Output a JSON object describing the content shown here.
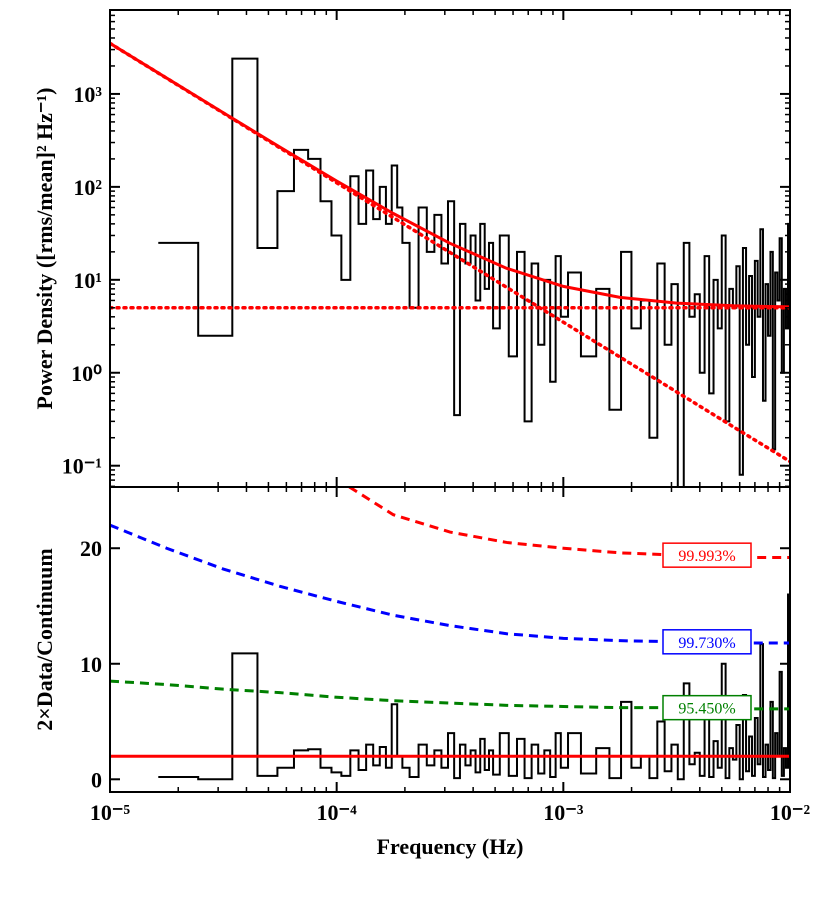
{
  "chart_data": [
    {
      "type": "step-line",
      "ylabel": "Power Density ([rms/mean]² Hz⁻¹)",
      "xscale": "log",
      "yscale": "log",
      "xlim": [
        1e-05,
        0.01
      ],
      "ylim": [
        0.059,
        8000
      ],
      "xticks": [
        {
          "value": 1e-05,
          "label": "10⁻⁵"
        },
        {
          "value": 0.0001,
          "label": "10⁻⁴"
        },
        {
          "value": 0.001,
          "label": "10⁻³"
        },
        {
          "value": 0.01,
          "label": "10⁻²"
        }
      ],
      "yticks": [
        {
          "value": 0.1,
          "label": "10⁻¹"
        },
        {
          "value": 1,
          "label": "10⁰"
        },
        {
          "value": 10,
          "label": "10¹"
        },
        {
          "value": 100,
          "label": "10²"
        },
        {
          "value": 1000,
          "label": "10³"
        }
      ],
      "series": [
        {
          "style": "step",
          "color": "#000000",
          "x": [
            2e-05,
            3e-05,
            4e-05,
            5e-05,
            6e-05,
            7e-05,
            8e-05,
            9e-05,
            0.0001,
            0.00011,
            0.00012,
            0.00013,
            0.00014,
            0.00015,
            0.00016,
            0.00017,
            0.00018,
            0.00019,
            0.0002,
            0.00022,
            0.00024,
            0.00026,
            0.00028,
            0.0003,
            0.00032,
            0.00034,
            0.00036,
            0.00038,
            0.0004,
            0.00042,
            0.00044,
            0.00046,
            0.00048,
            0.0005,
            0.00055,
            0.0006,
            0.00065,
            0.0007,
            0.00075,
            0.0008,
            0.00085,
            0.0009,
            0.00095,
            0.001,
            0.0011,
            0.0013,
            0.0015,
            0.0017,
            0.0019,
            0.0021,
            0.0023,
            0.0025,
            0.0027,
            0.0029,
            0.0031,
            0.0033,
            0.0035,
            0.0037,
            0.0039,
            0.0041,
            0.0043,
            0.0045,
            0.0047,
            0.0049,
            0.0051,
            0.0053,
            0.0055,
            0.0057,
            0.0059,
            0.0061,
            0.0063,
            0.0065,
            0.0067,
            0.0069,
            0.0071,
            0.0073,
            0.0075,
            0.0077,
            0.0079,
            0.0081,
            0.0083,
            0.0085,
            0.0087,
            0.0089,
            0.0091,
            0.0093,
            0.0095,
            0.0097,
            0.0099
          ],
          "values": [
            25,
            2.5,
            2400,
            22,
            90,
            250,
            200,
            70,
            30,
            10,
            130,
            40,
            150,
            45,
            100,
            40,
            170,
            60,
            25,
            5,
            60,
            20,
            50,
            15,
            70,
            0.35,
            40,
            15,
            30,
            6,
            40,
            8,
            25,
            3,
            30,
            1.5,
            20,
            0.3,
            15,
            2,
            10,
            0.8,
            18,
            4,
            12,
            1.5,
            8,
            0.4,
            20,
            3,
            6,
            0.2,
            15,
            2,
            9,
            0.05,
            25,
            4,
            7,
            1,
            18,
            0.6,
            10,
            3,
            30,
            0.3,
            8,
            5,
            14,
            0.08,
            22,
            2,
            11,
            0.9,
            16,
            4,
            35,
            0.5,
            9,
            2.5,
            20,
            0.15,
            12,
            6,
            28,
            1,
            8,
            3,
            40
          ]
        },
        {
          "style": "solid",
          "color": "#ff0000",
          "x": [
            1e-05,
            1.778e-05,
            3.162e-05,
            5.623e-05,
            0.0001,
            0.0001778,
            0.0003162,
            0.0005623,
            0.001,
            0.001778,
            0.003162,
            0.005623,
            0.01
          ],
          "values": [
            3505,
            1481,
            627.4,
            267.5,
            115.7,
            51.7,
            24.7,
            13.3,
            8.5,
            6.48,
            5.62,
            5.26,
            5.11
          ]
        },
        {
          "style": "dotted",
          "color": "#ff0000",
          "x": [
            1e-05,
            1.778e-05,
            3.162e-05,
            5.623e-05,
            0.0001,
            0.0001778,
            0.0003162,
            0.0005623,
            0.001,
            0.001778,
            0.003162,
            0.005623,
            0.01
          ],
          "values": [
            3500,
            1476,
            622.4,
            262.5,
            110.7,
            46.7,
            19.7,
            8.3,
            3.5,
            1.476,
            0.622,
            0.262,
            0.111
          ]
        },
        {
          "style": "dotted",
          "color": "#ff0000",
          "x": [
            1e-05,
            0.01
          ],
          "values": [
            5,
            5
          ]
        }
      ]
    },
    {
      "type": "step-line",
      "ylabel": "2×Data/Continuum",
      "xlabel": "Frequency (Hz)",
      "xscale": "log",
      "xlim": [
        1e-05,
        0.01
      ],
      "ylim": [
        -1.1,
        25.3
      ],
      "xticks": [
        {
          "value": 1e-05,
          "label": "10⁻⁵"
        },
        {
          "value": 0.0001,
          "label": "10⁻⁴"
        },
        {
          "value": 0.001,
          "label": "10⁻³"
        },
        {
          "value": 0.01,
          "label": "10⁻²"
        }
      ],
      "yticks": [
        0,
        10,
        20
      ],
      "series": [
        {
          "style": "step",
          "color": "#000000",
          "x": [
            2e-05,
            3e-05,
            4e-05,
            5e-05,
            6e-05,
            7e-05,
            8e-05,
            9e-05,
            0.0001,
            0.00011,
            0.00012,
            0.00013,
            0.00014,
            0.00015,
            0.00016,
            0.00017,
            0.00018,
            0.00019,
            0.0002,
            0.00022,
            0.00024,
            0.00026,
            0.00028,
            0.0003,
            0.00032,
            0.00034,
            0.00036,
            0.00038,
            0.0004,
            0.00042,
            0.00044,
            0.00046,
            0.00048,
            0.0005,
            0.00055,
            0.0006,
            0.00065,
            0.0007,
            0.00075,
            0.0008,
            0.00085,
            0.0009,
            0.00095,
            0.001,
            0.0011,
            0.0013,
            0.0015,
            0.0017,
            0.0019,
            0.0021,
            0.0023,
            0.0025,
            0.0027,
            0.0029,
            0.0031,
            0.0033,
            0.0035,
            0.0037,
            0.0039,
            0.0041,
            0.0043,
            0.0045,
            0.0047,
            0.0049,
            0.0051,
            0.0053,
            0.0055,
            0.0057,
            0.0059,
            0.0061,
            0.0063,
            0.0065,
            0.0067,
            0.0069,
            0.0071,
            0.0073,
            0.0075,
            0.0077,
            0.0079,
            0.0081,
            0.0083,
            0.0085,
            0.0087,
            0.0089,
            0.0091,
            0.0093,
            0.0095,
            0.0097,
            0.0099
          ],
          "values": [
            0.2,
            0.0,
            10.9,
            0.3,
            1.0,
            2.5,
            2.6,
            1.0,
            0.6,
            0.3,
            2.5,
            0.8,
            3.0,
            1.2,
            2.8,
            1.0,
            6.5,
            2.0,
            1.0,
            0.2,
            3.0,
            1.2,
            2.5,
            1.0,
            4.0,
            0.1,
            3.0,
            1.2,
            2.5,
            0.6,
            3.5,
            0.8,
            2.5,
            0.4,
            4.0,
            0.3,
            3.5,
            0.1,
            3.0,
            0.5,
            2.5,
            0.2,
            4.0,
            1.0,
            4.0,
            0.5,
            2.7,
            0.1,
            6.7,
            1.0,
            2.0,
            0.1,
            5.0,
            0.7,
            3.0,
            0.0,
            8.3,
            1.3,
            2.3,
            0.3,
            6.0,
            0.2,
            3.3,
            1.0,
            10.0,
            0.1,
            2.7,
            1.7,
            4.7,
            0.0,
            7.3,
            0.7,
            3.7,
            0.3,
            5.3,
            1.3,
            11.7,
            0.2,
            3.0,
            0.8,
            6.7,
            0.1,
            4.0,
            2.0,
            9.3,
            0.3,
            2.7,
            1.0,
            16
          ]
        },
        {
          "style": "solid",
          "color": "#ff0000",
          "x": [
            1e-05,
            0.01
          ],
          "values": [
            2,
            2
          ]
        },
        {
          "style": "dashed",
          "color": "#ff0000",
          "label": "99.993%",
          "x": [
            1e-05,
            1.778e-05,
            3.162e-05,
            5.623e-05,
            0.0001,
            0.0001778,
            0.0003162,
            0.0005623,
            0.001,
            0.001778,
            0.003162,
            0.005623,
            0.01
          ],
          "values": [
            null,
            null,
            null,
            null,
            26,
            22.9,
            21.4,
            20.5,
            20.0,
            19.6,
            19.4,
            19.2,
            19.2
          ]
        },
        {
          "style": "dashed",
          "color": "#0000ff",
          "label": "99.730%",
          "x": [
            1e-05,
            1.778e-05,
            3.162e-05,
            5.623e-05,
            0.0001,
            0.0001778,
            0.0003162,
            0.0005623,
            0.001,
            0.001778,
            0.003162,
            0.005623,
            0.01
          ],
          "values": [
            22,
            20.0,
            18.2,
            16.7,
            15.4,
            14.2,
            13.3,
            12.6,
            12.2,
            12.0,
            11.9,
            11.8,
            11.8
          ]
        },
        {
          "style": "dashed",
          "color": "#008000",
          "label": "95.450%",
          "x": [
            1e-05,
            1.778e-05,
            3.162e-05,
            5.623e-05,
            0.0001,
            0.0001778,
            0.0003162,
            0.0005623,
            0.001,
            0.001778,
            0.003162,
            0.005623,
            0.01
          ],
          "values": [
            8.5,
            8.2,
            7.8,
            7.5,
            7.1,
            6.8,
            6.6,
            6.4,
            6.3,
            6.2,
            6.2,
            6.1,
            6.1
          ]
        }
      ]
    }
  ]
}
